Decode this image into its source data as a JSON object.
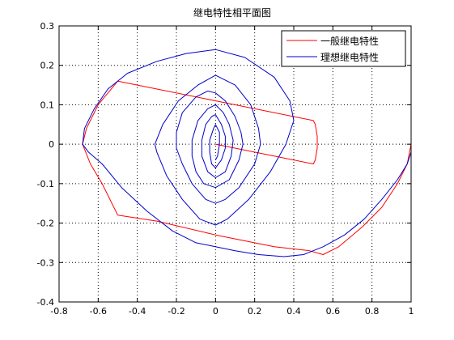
{
  "colors": {
    "series_general": "#ff0000",
    "series_ideal": "#0000cc",
    "grid": "#000000",
    "axes": "#000000"
  },
  "chart_data": {
    "type": "line",
    "title": "继电特性相平面图",
    "xlabel": "",
    "ylabel": "",
    "xlim": [
      -0.8,
      1.0
    ],
    "ylim": [
      -0.4,
      0.3
    ],
    "xticks": [
      -0.8,
      -0.6,
      -0.4,
      -0.2,
      0,
      0.2,
      0.4,
      0.6,
      0.8,
      1
    ],
    "yticks": [
      -0.4,
      -0.3,
      -0.2,
      -0.1,
      0,
      0.1,
      0.2,
      0.3
    ],
    "xtick_labels": [
      "-0.8",
      "-0.6",
      "-0.4",
      "-0.2",
      "0",
      "0.2",
      "0.4",
      "0.6",
      "0.8",
      "1"
    ],
    "ytick_labels": [
      "-0.4",
      "-0.3",
      "-0.2",
      "-0.1",
      "0",
      "0.1",
      "0.2",
      "0.3"
    ],
    "grid": true,
    "grid_style": "dotted",
    "legend_position": "top-right",
    "series": [
      {
        "name": "一般继电特性",
        "color": "#ff0000",
        "x": [
          1.0,
          0.98,
          0.93,
          0.85,
          0.75,
          0.63,
          0.55,
          0.48,
          0.3,
          0.0,
          -0.3,
          -0.5,
          -0.58,
          -0.64,
          -0.68,
          -0.66,
          -0.6,
          -0.55,
          -0.5,
          0.5,
          0.51,
          0.52,
          0.52,
          0.51,
          0.5,
          0.0
        ],
        "y": [
          0.0,
          -0.05,
          -0.1,
          -0.16,
          -0.21,
          -0.26,
          -0.28,
          -0.27,
          -0.26,
          -0.23,
          -0.195,
          -0.18,
          -0.1,
          -0.05,
          0.0,
          0.04,
          0.1,
          0.13,
          0.16,
          0.06,
          0.05,
          0.02,
          -0.01,
          -0.04,
          -0.05,
          0.0
        ]
      },
      {
        "name": "理想继电特性",
        "color": "#0000cc",
        "x": [
          1.0,
          0.98,
          0.93,
          0.85,
          0.76,
          0.66,
          0.55,
          0.45,
          0.35,
          0.22,
          0.1,
          0.0,
          -0.1,
          -0.22,
          -0.35,
          -0.48,
          -0.58,
          -0.65,
          -0.68,
          -0.67,
          -0.62,
          -0.55,
          -0.45,
          -0.3,
          -0.15,
          0.0,
          0.15,
          0.3,
          0.38,
          0.4,
          0.36,
          0.28,
          0.17,
          0.06,
          0.0,
          -0.08,
          -0.17,
          -0.25,
          -0.3,
          -0.31,
          -0.27,
          -0.19,
          -0.09,
          0.0,
          0.1,
          0.18,
          0.22,
          0.23,
          0.2,
          0.12,
          0.05,
          0.0,
          -0.05,
          -0.12,
          -0.17,
          -0.2,
          -0.2,
          -0.17,
          -0.1,
          -0.04,
          0.0,
          0.05,
          0.1,
          0.13,
          0.14,
          0.12,
          0.07,
          0.0,
          -0.06,
          -0.1,
          -0.12,
          -0.12,
          -0.09,
          -0.04,
          0.0,
          0.04,
          0.07,
          0.09,
          0.08,
          0.05,
          0.0,
          -0.04,
          -0.07,
          -0.07,
          -0.05,
          -0.02,
          0.0,
          0.03,
          0.05,
          0.05,
          0.03,
          0.0,
          -0.02,
          -0.03,
          -0.03,
          -0.01,
          0.0,
          0.02,
          0.02,
          0.01,
          0.0
        ],
        "y": [
          -0.02,
          -0.05,
          -0.09,
          -0.14,
          -0.19,
          -0.23,
          -0.26,
          -0.28,
          -0.285,
          -0.28,
          -0.27,
          -0.26,
          -0.25,
          -0.22,
          -0.17,
          -0.11,
          -0.05,
          -0.02,
          0.0,
          0.04,
          0.09,
          0.14,
          0.18,
          0.21,
          0.23,
          0.24,
          0.22,
          0.17,
          0.11,
          0.06,
          0.0,
          -0.07,
          -0.14,
          -0.19,
          -0.205,
          -0.19,
          -0.14,
          -0.08,
          -0.02,
          0.0,
          0.05,
          0.11,
          0.15,
          0.175,
          0.15,
          0.1,
          0.04,
          0.0,
          -0.05,
          -0.11,
          -0.14,
          -0.15,
          -0.14,
          -0.1,
          -0.05,
          -0.01,
          0.03,
          0.08,
          0.12,
          0.135,
          0.13,
          0.11,
          0.07,
          0.03,
          0.0,
          -0.04,
          -0.09,
          -0.11,
          -0.1,
          -0.07,
          -0.03,
          0.01,
          0.06,
          0.09,
          0.1,
          0.08,
          0.05,
          0.01,
          -0.03,
          -0.07,
          -0.085,
          -0.07,
          -0.03,
          0.01,
          0.05,
          0.07,
          0.075,
          0.05,
          0.02,
          -0.01,
          -0.04,
          -0.06,
          -0.05,
          -0.02,
          0.01,
          0.04,
          0.05,
          0.03,
          0.0,
          -0.03,
          -0.04
        ]
      }
    ]
  }
}
